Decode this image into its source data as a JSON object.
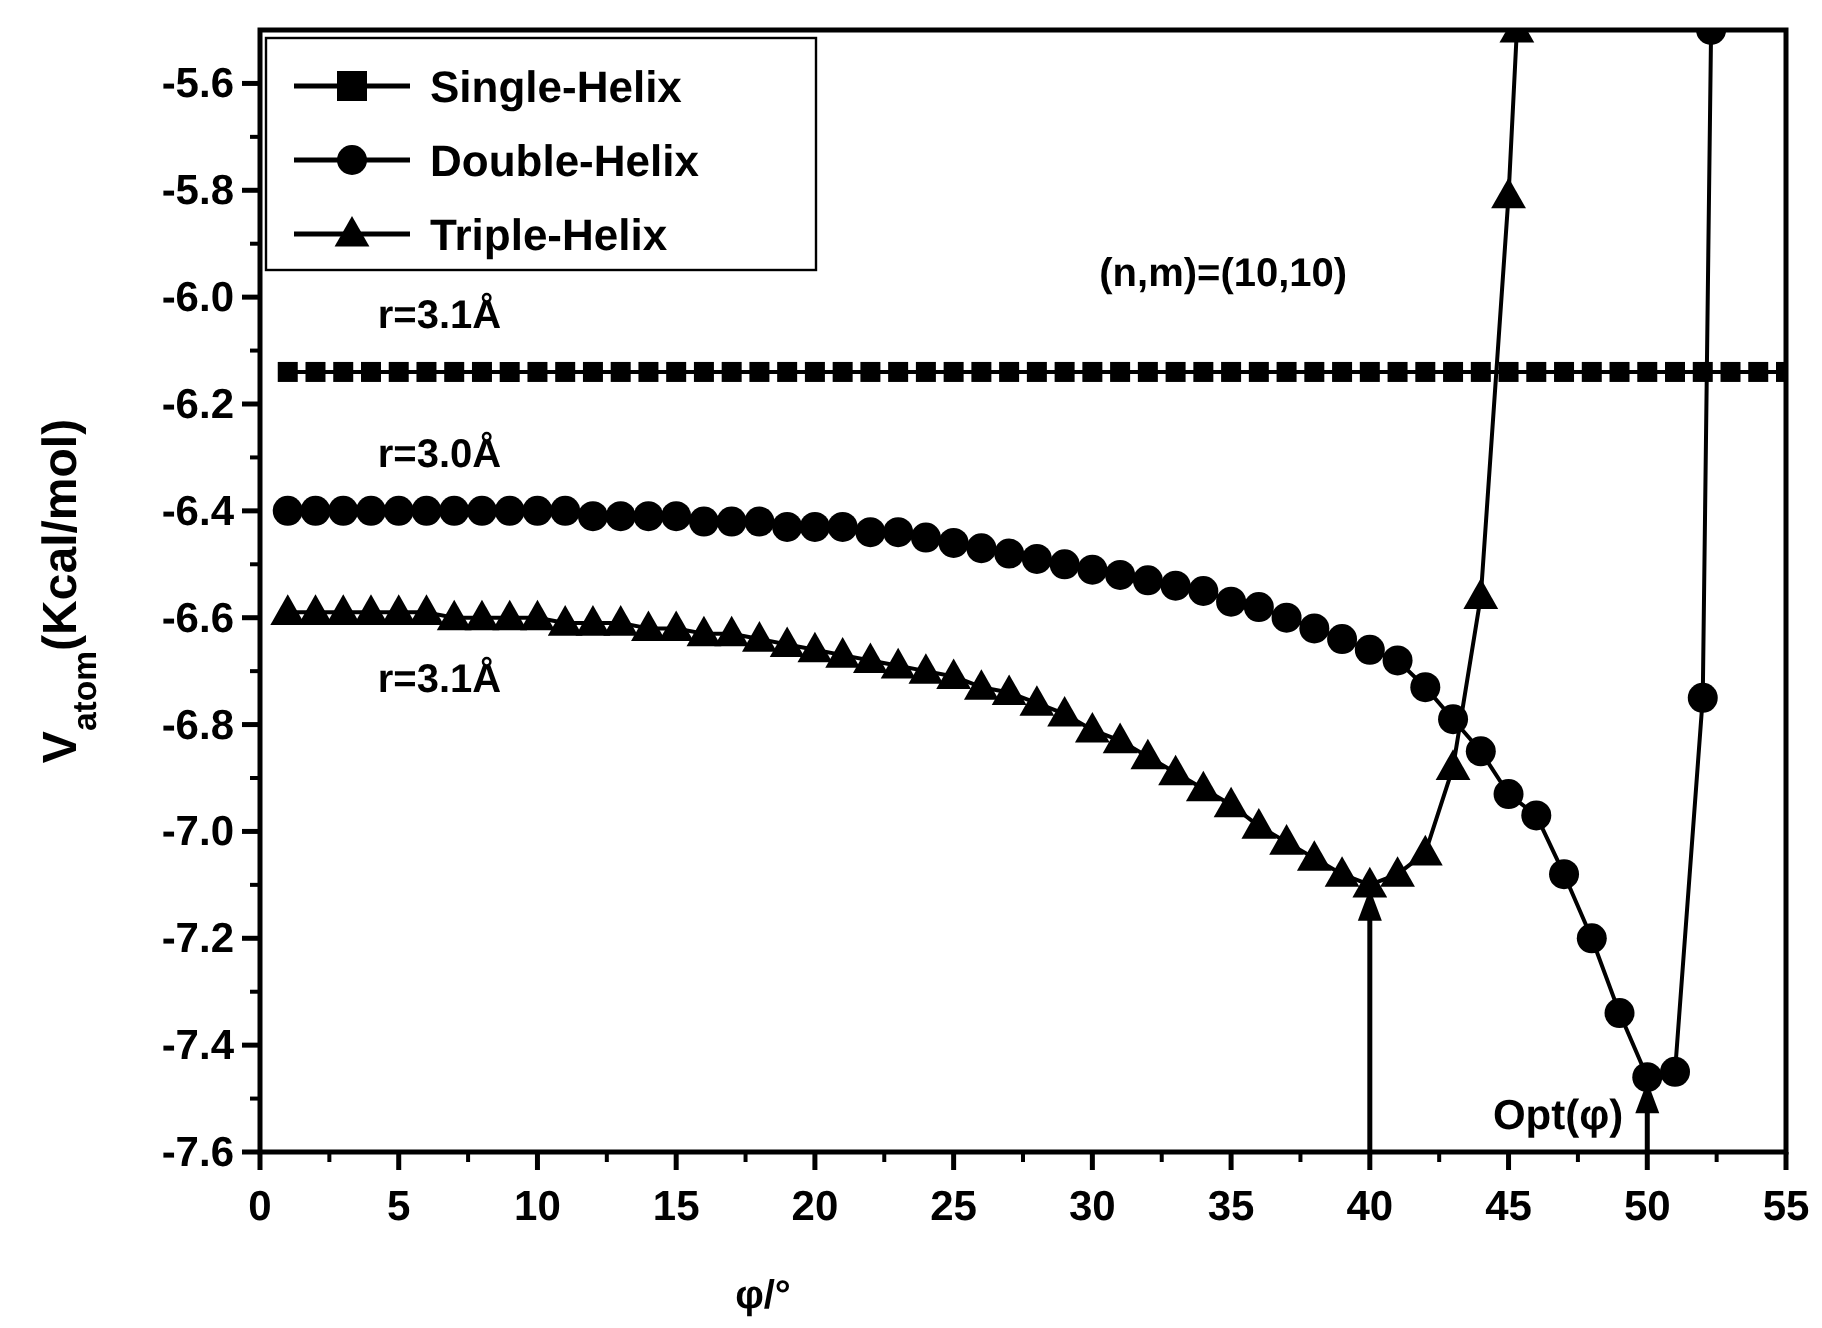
{
  "chart_data": {
    "type": "line",
    "xlabel": "φ/°",
    "ylabel": "V$_{atom}$(Kcal/mol)",
    "xlim": [
      0,
      55
    ],
    "xticks": [
      0,
      5,
      10,
      15,
      20,
      25,
      30,
      35,
      40,
      45,
      50,
      55
    ],
    "ylim": [
      -7.6,
      -5.5
    ],
    "yticks": [
      -7.6,
      -7.4,
      -7.2,
      {
        "value": -7,
        "label": "-7.0"
      },
      -6.8,
      -6.6,
      -6.4,
      -6.2,
      {
        "value": -6,
        "label": "-6.0"
      },
      -5.8,
      -5.6
    ],
    "legend": "top left",
    "grid": false,
    "series": [
      {
        "name": "Single-Helix",
        "color": "#000000",
        "marker": "square",
        "x": [
          1,
          2,
          3,
          4,
          5,
          6,
          7,
          8,
          9,
          10,
          11,
          12,
          13,
          14,
          15,
          16,
          17,
          18,
          19,
          20,
          21,
          22,
          23,
          24,
          25,
          26,
          27,
          28,
          29,
          30,
          31,
          32,
          33,
          34,
          35,
          36,
          37,
          38,
          39,
          40,
          41,
          42,
          43,
          44,
          45,
          46,
          47,
          48,
          49,
          50,
          51,
          52,
          53,
          54,
          55
        ],
        "values": [
          -6.14,
          -6.14,
          -6.14,
          -6.14,
          -6.14,
          -6.14,
          -6.14,
          -6.14,
          -6.14,
          -6.14,
          -6.14,
          -6.14,
          -6.14,
          -6.14,
          -6.14,
          -6.14,
          -6.14,
          -6.14,
          -6.14,
          -6.14,
          -6.14,
          -6.14,
          -6.14,
          -6.14,
          -6.14,
          -6.14,
          -6.14,
          -6.14,
          -6.14,
          -6.14,
          -6.14,
          -6.14,
          -6.14,
          -6.14,
          -6.14,
          -6.14,
          -6.14,
          -6.14,
          -6.14,
          -6.14,
          -6.14,
          -6.14,
          -6.14,
          -6.14,
          -6.14,
          -6.14,
          -6.14,
          -6.14,
          -6.14,
          -6.14,
          -6.14,
          -6.14,
          -6.14,
          -6.14,
          -6.14
        ]
      },
      {
        "name": "Double-Helix",
        "color": "#000000",
        "marker": "circle",
        "x": [
          1,
          2,
          3,
          4,
          5,
          6,
          7,
          8,
          9,
          10,
          11,
          12,
          13,
          14,
          15,
          16,
          17,
          18,
          19,
          20,
          21,
          22,
          23,
          24,
          25,
          26,
          27,
          28,
          29,
          30,
          31,
          32,
          33,
          34,
          35,
          36,
          37,
          38,
          39,
          40,
          41,
          42,
          43,
          44,
          45,
          46,
          47,
          48,
          49,
          50,
          51,
          52,
          52.3
        ],
        "values": [
          -6.4,
          -6.4,
          -6.4,
          -6.4,
          -6.4,
          -6.4,
          -6.4,
          -6.4,
          -6.4,
          -6.4,
          -6.4,
          -6.41,
          -6.41,
          -6.41,
          -6.41,
          -6.42,
          -6.42,
          -6.42,
          -6.43,
          -6.43,
          -6.43,
          -6.44,
          -6.44,
          -6.45,
          -6.46,
          -6.47,
          -6.48,
          -6.49,
          -6.5,
          -6.51,
          -6.52,
          -6.53,
          -6.54,
          -6.55,
          -6.57,
          -6.58,
          -6.6,
          -6.62,
          -6.64,
          -6.66,
          -6.68,
          -6.73,
          -6.79,
          -6.85,
          -6.93,
          -6.97,
          -7.08,
          -7.2,
          -7.34,
          -7.46,
          -7.45,
          -6.75,
          -5.5
        ]
      },
      {
        "name": "Triple-Helix",
        "color": "#000000",
        "marker": "triangle",
        "x": [
          1,
          2,
          3,
          4,
          5,
          6,
          7,
          8,
          9,
          10,
          11,
          12,
          13,
          14,
          15,
          16,
          17,
          18,
          19,
          20,
          21,
          22,
          23,
          24,
          25,
          26,
          27,
          28,
          29,
          30,
          31,
          32,
          33,
          34,
          35,
          36,
          37,
          38,
          39,
          40,
          41,
          42,
          43,
          44,
          45,
          45.3
        ],
        "values": [
          -6.59,
          -6.59,
          -6.59,
          -6.59,
          -6.59,
          -6.59,
          -6.6,
          -6.6,
          -6.6,
          -6.6,
          -6.61,
          -6.61,
          -6.61,
          -6.62,
          -6.62,
          -6.63,
          -6.63,
          -6.64,
          -6.65,
          -6.66,
          -6.67,
          -6.68,
          -6.69,
          -6.7,
          -6.71,
          -6.73,
          -6.74,
          -6.76,
          -6.78,
          -6.81,
          -6.83,
          -6.86,
          -6.89,
          -6.92,
          -6.95,
          -6.99,
          -7.02,
          -7.05,
          -7.08,
          -7.1,
          -7.08,
          -7.04,
          -6.88,
          -6.56,
          -5.81,
          -5.5
        ]
      }
    ],
    "annotations": [
      "r=3.1Å",
      "r=3.0Å",
      "r=3.1Å",
      "(n,m)=(10,10)",
      {
        "text": "Opt(φ)",
        "x": 50,
        "y": -7.46
      }
    ]
  }
}
